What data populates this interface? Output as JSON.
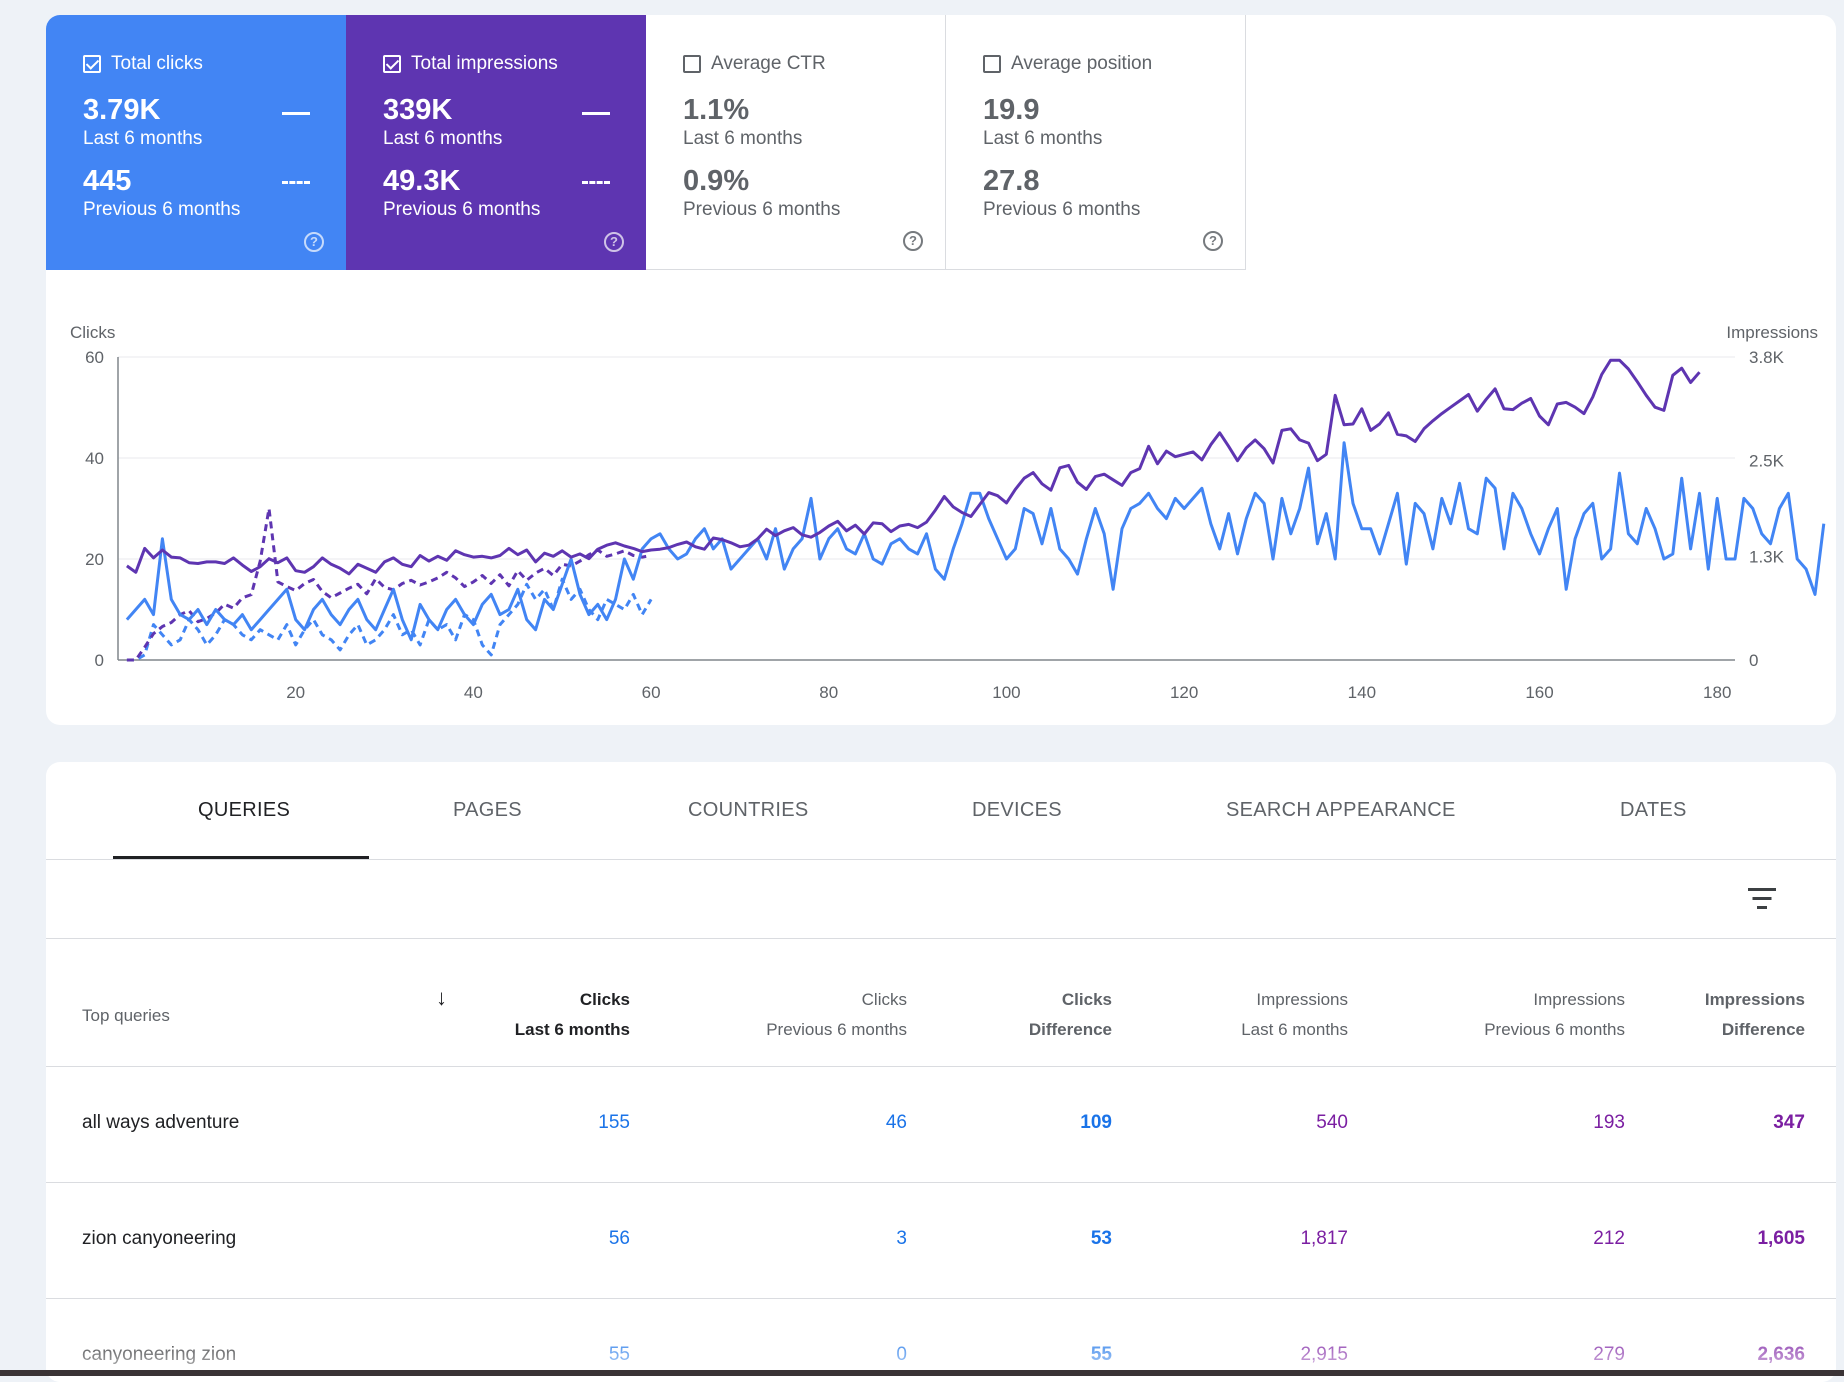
{
  "metrics": [
    {
      "label": "Total clicks",
      "checked": true,
      "current": "3.79K",
      "current_period": "Last 6 months",
      "previous": "445",
      "previous_period": "Previous 6 months",
      "color": "#4285f4"
    },
    {
      "label": "Total impressions",
      "checked": true,
      "current": "339K",
      "current_period": "Last 6 months",
      "previous": "49.3K",
      "previous_period": "Previous 6 months",
      "color": "#5e35b1"
    },
    {
      "label": "Average CTR",
      "checked": false,
      "current": "1.1%",
      "current_period": "Last 6 months",
      "previous": "0.9%",
      "previous_period": "Previous 6 months"
    },
    {
      "label": "Average position",
      "checked": false,
      "current": "19.9",
      "current_period": "Last 6 months",
      "previous": "27.8",
      "previous_period": "Previous 6 months"
    }
  ],
  "chart_data": {
    "type": "line",
    "ylabel_left": "Clicks",
    "ylabel_right": "Impressions",
    "left_ticks": [
      "60",
      "40",
      "20",
      "0"
    ],
    "right_ticks": [
      "3.8K",
      "2.5K",
      "1.3K",
      "0"
    ],
    "x_ticks": [
      "20",
      "40",
      "60",
      "80",
      "100",
      "120",
      "140",
      "160",
      "180"
    ],
    "ylim_left": [
      0,
      60
    ],
    "ylim_right": [
      0,
      3800
    ],
    "xlim": [
      0,
      182
    ],
    "colors": {
      "clicks": "#4285f4",
      "impressions": "#5e35b1"
    },
    "series": [
      {
        "name": "Total clicks",
        "period": "Last 6 months",
        "axis": "left",
        "style": "solid",
        "x_start": 1,
        "values": [
          8,
          10,
          12,
          9,
          24,
          12,
          9,
          8,
          10,
          7,
          10,
          8,
          7,
          9,
          6,
          8,
          10,
          12,
          14,
          8,
          6,
          10,
          12,
          9,
          7,
          10,
          12,
          8,
          6,
          10,
          14,
          8,
          4,
          11,
          8,
          6,
          10,
          12,
          9,
          7,
          11,
          13,
          9,
          10,
          14,
          8,
          6,
          12,
          10,
          15,
          20,
          13,
          9,
          11,
          8,
          12,
          20,
          16,
          22,
          24,
          25,
          22,
          20,
          21,
          24,
          26,
          22,
          24,
          18,
          20,
          22,
          24,
          20,
          26,
          18,
          22,
          24,
          32,
          20,
          24,
          26,
          22,
          21,
          25,
          20,
          19,
          23,
          24,
          22,
          21,
          25,
          18,
          16,
          22,
          27,
          33,
          33,
          28,
          24,
          20,
          22,
          30,
          29,
          23,
          30,
          22,
          20,
          17,
          24,
          30,
          25,
          14,
          26,
          30,
          31,
          33,
          30,
          28,
          32,
          30,
          32,
          34,
          27,
          22,
          29,
          21,
          28,
          33,
          31,
          20,
          32,
          25,
          30,
          38,
          23,
          29,
          20,
          43,
          31,
          26,
          26,
          21,
          27,
          33,
          19,
          31,
          29,
          22,
          32,
          27,
          35,
          26,
          25,
          36,
          34,
          22,
          33,
          30,
          25,
          21,
          26,
          30,
          14,
          24,
          29,
          31,
          20,
          22,
          37,
          25,
          23,
          30,
          26,
          20,
          21,
          36,
          22,
          33,
          18,
          32,
          20,
          20,
          32,
          30,
          25,
          23,
          30,
          33,
          20,
          18,
          13,
          27
        ],
        "note": "approximate"
      },
      {
        "name": "Total impressions",
        "period": "Last 6 months",
        "axis": "right",
        "style": "solid",
        "x_start": 1,
        "values": [
          1180,
          1100,
          1400,
          1280,
          1380,
          1290,
          1280,
          1220,
          1210,
          1230,
          1230,
          1210,
          1280,
          1190,
          1110,
          1170,
          1270,
          1220,
          1280,
          1120,
          1100,
          1170,
          1280,
          1200,
          1150,
          1080,
          1200,
          1150,
          1100,
          1230,
          1280,
          1200,
          1170,
          1310,
          1240,
          1300,
          1250,
          1370,
          1320,
          1290,
          1300,
          1280,
          1310,
          1400,
          1320,
          1380,
          1230,
          1340,
          1300,
          1370,
          1290,
          1330,
          1270,
          1390,
          1440,
          1470,
          1430,
          1400,
          1360,
          1380,
          1390,
          1410,
          1450,
          1480,
          1420,
          1390,
          1530,
          1510,
          1470,
          1420,
          1440,
          1520,
          1640,
          1560,
          1620,
          1660,
          1570,
          1540,
          1600,
          1680,
          1740,
          1620,
          1690,
          1580,
          1720,
          1710,
          1610,
          1680,
          1700,
          1660,
          1730,
          1880,
          2050,
          1920,
          1850,
          1800,
          1950,
          2100,
          2060,
          1970,
          2140,
          2280,
          2350,
          2210,
          2130,
          2410,
          2440,
          2230,
          2140,
          2300,
          2330,
          2260,
          2190,
          2350,
          2400,
          2680,
          2460,
          2620,
          2550,
          2580,
          2610,
          2510,
          2700,
          2850,
          2680,
          2500,
          2660,
          2760,
          2650,
          2470,
          2880,
          2900,
          2760,
          2720,
          2500,
          2580,
          3320,
          2950,
          2960,
          3150,
          2880,
          2960,
          3100,
          2830,
          2810,
          2740,
          2900,
          3000,
          3090,
          3170,
          3250,
          3330,
          3120,
          3270,
          3400,
          3150,
          3140,
          3220,
          3280,
          3060,
          2950,
          3210,
          3230,
          3170,
          3090,
          3300,
          3580,
          3760,
          3760,
          3650,
          3490,
          3320,
          3170,
          3130,
          3570,
          3660,
          3480,
          3610
        ]
      },
      {
        "name": "Total clicks",
        "period": "Previous 6 months",
        "axis": "left",
        "style": "dashed",
        "x_start": 1,
        "values": [
          0,
          0,
          1,
          7,
          5,
          3,
          4,
          8,
          6,
          3,
          5,
          8,
          7,
          5,
          4,
          6,
          5,
          4,
          7,
          3,
          6,
          8,
          5,
          4,
          2,
          5,
          7,
          3,
          4,
          6,
          9,
          5,
          6,
          3,
          8,
          6,
          7,
          4,
          9,
          8,
          3,
          1,
          7,
          9,
          11,
          15,
          12,
          14,
          10,
          16,
          12,
          14,
          10,
          8,
          12,
          11,
          10,
          13,
          9,
          12
        ]
      },
      {
        "name": "Total impressions",
        "period": "Previous 6 months",
        "axis": "right",
        "style": "dashed",
        "x_start": 1,
        "values": [
          0,
          0,
          160,
          330,
          420,
          470,
          570,
          620,
          480,
          520,
          590,
          700,
          650,
          780,
          820,
          1240,
          1900,
          980,
          920,
          870,
          960,
          1010,
          860,
          780,
          840,
          900,
          950,
          830,
          1020,
          910,
          880,
          960,
          1000,
          940,
          980,
          1030,
          1100,
          1030,
          920,
          980,
          1060,
          960,
          1070,
          930,
          1120,
          1000,
          1090,
          1150,
          1060,
          1200,
          1180,
          1240,
          1320,
          1380,
          1300,
          1330,
          1370,
          1310,
          1290,
          1310
        ]
      }
    ]
  },
  "tabs": [
    {
      "label": "QUERIES",
      "active": true
    },
    {
      "label": "PAGES",
      "active": false
    },
    {
      "label": "COUNTRIES",
      "active": false
    },
    {
      "label": "DEVICES",
      "active": false
    },
    {
      "label": "SEARCH APPEARANCE",
      "active": false
    },
    {
      "label": "DATES",
      "active": false
    }
  ],
  "table": {
    "first_header": "Top queries",
    "sort_icon": "arrow-down-icon",
    "headers": [
      {
        "line1": "Clicks",
        "line2": "Last 6 months"
      },
      {
        "line1": "Clicks",
        "line2": "Previous 6 months"
      },
      {
        "line1": "Clicks",
        "line2": "Difference"
      },
      {
        "line1": "Impressions",
        "line2": "Last 6 months"
      },
      {
        "line1": "Impressions",
        "line2": "Previous 6 months"
      },
      {
        "line1": "Impressions",
        "line2": "Difference"
      }
    ],
    "rows": [
      {
        "query": "all ways adventure",
        "values": [
          "155",
          "46",
          "109",
          "540",
          "193",
          "347"
        ]
      },
      {
        "query": "zion canyoneering",
        "values": [
          "56",
          "3",
          "53",
          "1,817",
          "212",
          "1,605"
        ]
      },
      {
        "query": "canyoneering zion",
        "values": [
          "55",
          "0",
          "55",
          "2,915",
          "279",
          "2,636"
        ]
      }
    ]
  }
}
